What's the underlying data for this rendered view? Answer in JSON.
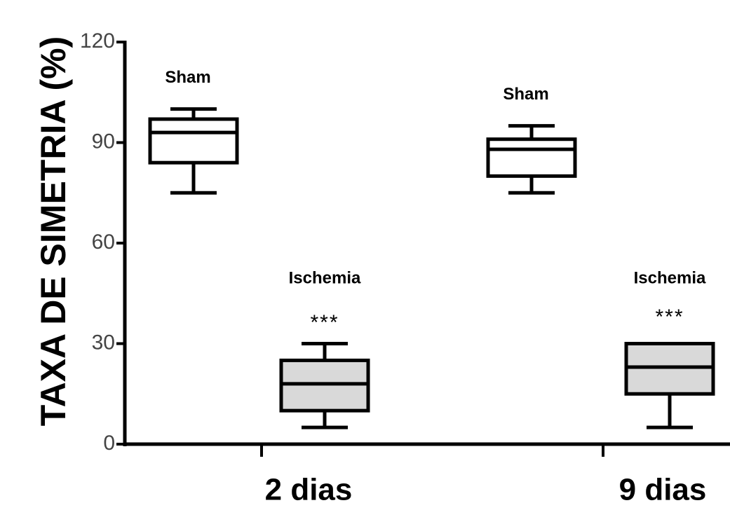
{
  "chart_data": {
    "type": "boxplot",
    "ylabel": "TAXA DE SIMETRIA (%)",
    "xlabel": "",
    "ylim": [
      0,
      120
    ],
    "yticks": [
      0,
      30,
      60,
      90,
      120
    ],
    "groups": [
      "2 dias",
      "9 dias"
    ],
    "boxes": [
      {
        "group": "2 dias",
        "label": "Sham",
        "whisker_low": 75,
        "q1": 84,
        "median": 93,
        "q3": 97,
        "whisker_high": 100,
        "annotation": "",
        "fill": "#ffffff"
      },
      {
        "group": "2 dias",
        "label": "Ischemia",
        "whisker_low": 5,
        "q1": 10,
        "median": 18,
        "q3": 25,
        "whisker_high": 30,
        "annotation": "***",
        "fill": "#d9d9d9"
      },
      {
        "group": "9 dias",
        "label": "Sham",
        "whisker_low": 75,
        "q1": 80,
        "median": 88,
        "q3": 91,
        "whisker_high": 95,
        "annotation": "",
        "fill": "#ffffff"
      },
      {
        "group": "9 dias",
        "label": "Ischemia",
        "whisker_low": 5,
        "q1": 15,
        "median": 23,
        "q3": 30,
        "whisker_high": 30,
        "annotation": "***",
        "fill": "#d9d9d9"
      }
    ],
    "grid": false,
    "legend": "none"
  }
}
